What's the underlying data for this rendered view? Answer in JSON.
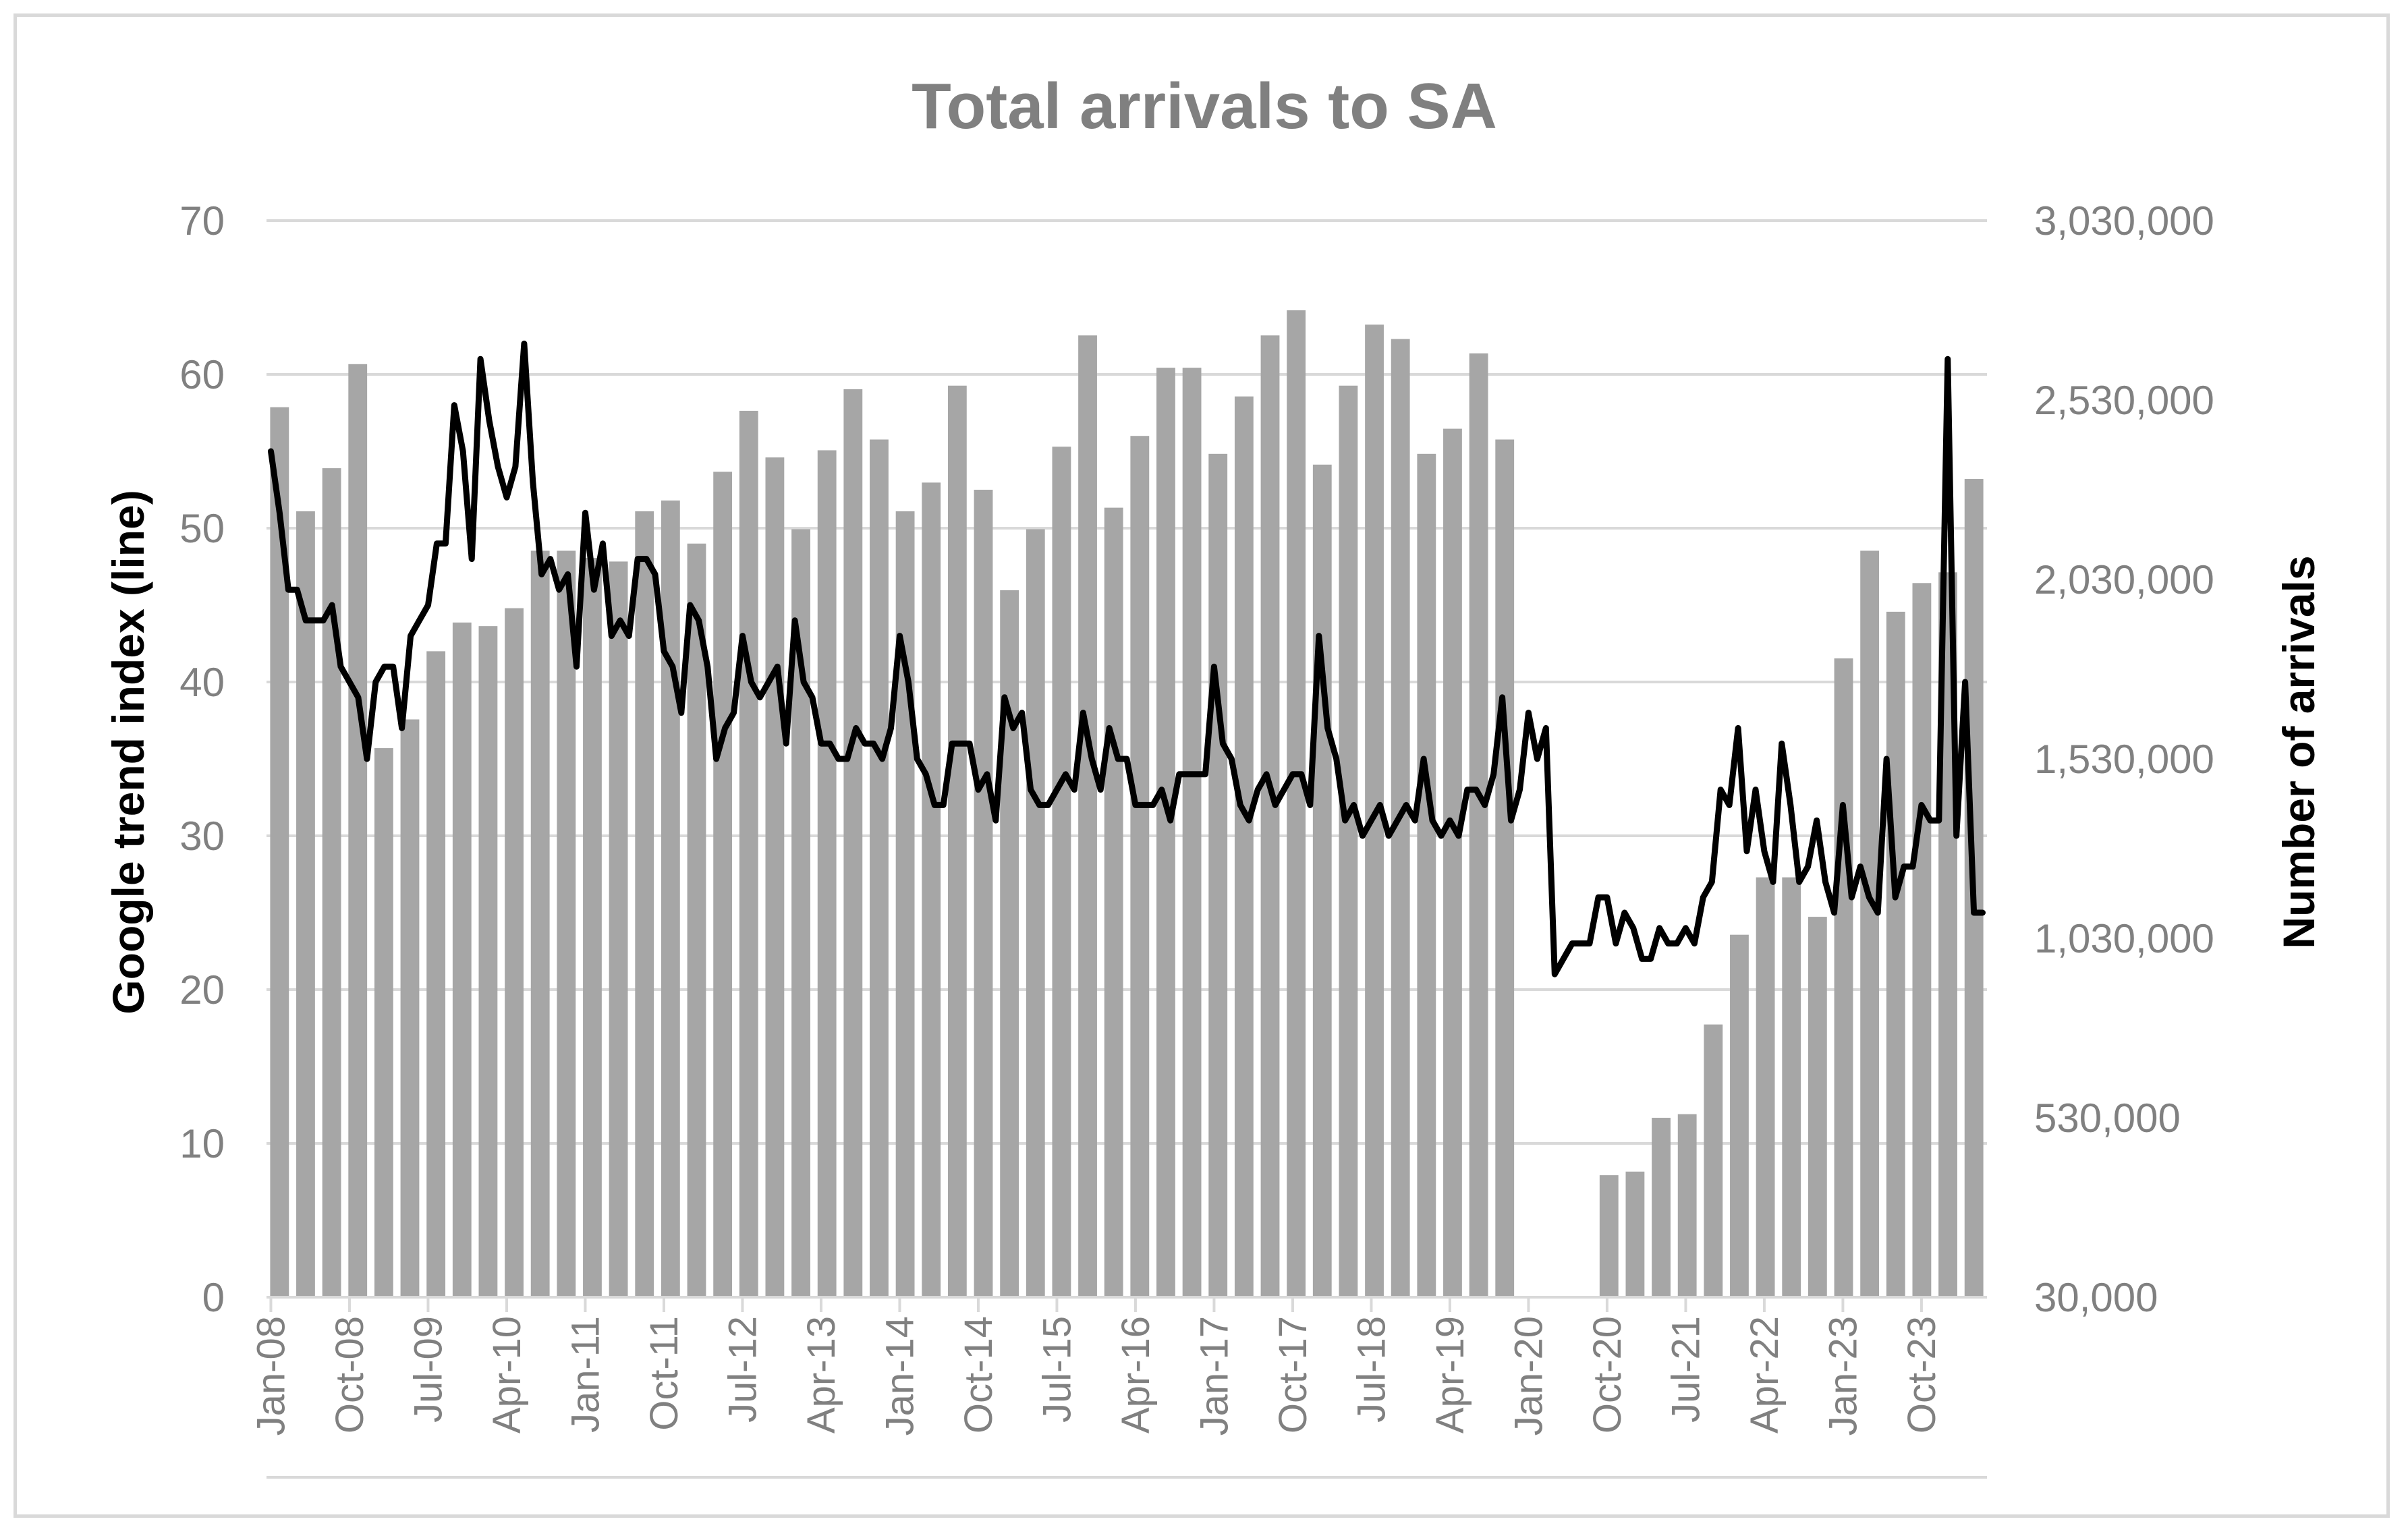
{
  "colors": {
    "bars": "#a6a6a6",
    "line": "#000000",
    "gridlines": "#d9d9d9",
    "ticks": "#808080",
    "title": "#808080",
    "axis_titles": "#000000"
  },
  "chart_data": {
    "type": "bar+line",
    "title": "Total arrivals to SA",
    "y_left_label": "Google trend index (line)",
    "y_right_label": "Number of arrivals",
    "y_left_range": [
      0,
      70
    ],
    "y_left_ticks": [
      "0",
      "10",
      "20",
      "30",
      "40",
      "50",
      "60",
      "70"
    ],
    "y_right_range": [
      30000,
      3030000
    ],
    "y_right_ticks": [
      "30,000",
      "530,000",
      "1,030,000",
      "1,530,000",
      "2,030,000",
      "2,530,000",
      "3,030,000"
    ],
    "x_tick_labels": [
      "Jan-08",
      "Oct-08",
      "Jul-09",
      "Apr-10",
      "Jan-11",
      "Oct-11",
      "Jul-12",
      "Apr-13",
      "Jan-14",
      "Oct-14",
      "Jul-15",
      "Apr-16",
      "Jan-17",
      "Oct-17",
      "Jul-18",
      "Apr-19",
      "Jan-20",
      "Oct-20",
      "Jul-21",
      "Apr-22",
      "Jan-23",
      "Oct-23"
    ],
    "grid": "horizontal",
    "series": [
      {
        "name": "Number of arrivals",
        "kind": "bar",
        "axis": "right",
        "frequency": "quarterly",
        "x": [
          "2008-Q1",
          "2008-Q2",
          "2008-Q3",
          "2008-Q4",
          "2009-Q1",
          "2009-Q2",
          "2009-Q3",
          "2009-Q4",
          "2010-Q1",
          "2010-Q2",
          "2010-Q3",
          "2010-Q4",
          "2011-Q1",
          "2011-Q2",
          "2011-Q3",
          "2011-Q4",
          "2012-Q1",
          "2012-Q2",
          "2012-Q3",
          "2012-Q4",
          "2013-Q1",
          "2013-Q2",
          "2013-Q3",
          "2013-Q4",
          "2014-Q1",
          "2014-Q2",
          "2014-Q3",
          "2014-Q4",
          "2015-Q1",
          "2015-Q2",
          "2015-Q3",
          "2015-Q4",
          "2016-Q1",
          "2016-Q2",
          "2016-Q3",
          "2016-Q4",
          "2017-Q1",
          "2017-Q2",
          "2017-Q3",
          "2017-Q4",
          "2018-Q1",
          "2018-Q2",
          "2018-Q3",
          "2018-Q4",
          "2019-Q1",
          "2019-Q2",
          "2019-Q3",
          "2019-Q4",
          "2020-Q1",
          "2020-Q2",
          "2020-Q3",
          "2020-Q4",
          "2021-Q1",
          "2021-Q2",
          "2021-Q3",
          "2021-Q4",
          "2022-Q1",
          "2022-Q2",
          "2022-Q3",
          "2022-Q4",
          "2023-Q1",
          "2023-Q2",
          "2023-Q3",
          "2023-Q4",
          "2024-Q1",
          "2024-Q2"
        ],
        "values": [
          2510000,
          2220000,
          2340000,
          2630000,
          1560000,
          1640000,
          1830000,
          1910000,
          1900000,
          1950000,
          2110000,
          2110000,
          2090000,
          2080000,
          2220000,
          2250000,
          2130000,
          2330000,
          2500000,
          2370000,
          2170000,
          2390000,
          2560000,
          2420000,
          2220000,
          2300000,
          2570000,
          2280000,
          2000000,
          2170000,
          2400000,
          2710000,
          2230000,
          2430000,
          2620000,
          2620000,
          2380000,
          2540000,
          2710000,
          2780000,
          2350000,
          2570000,
          2740000,
          2700000,
          2380000,
          2450000,
          2660000,
          2420000,
          30000,
          30000,
          30000,
          370000,
          380000,
          530000,
          540000,
          790000,
          1040000,
          1200000,
          1200000,
          1090000,
          1810000,
          2110000,
          1940000,
          2020000,
          2050000,
          2310000
        ]
      },
      {
        "name": "Google trend index",
        "kind": "line",
        "axis": "left",
        "frequency": "monthly",
        "x_start": "Jan-08",
        "values": [
          55,
          51,
          46,
          46,
          44,
          44,
          44,
          45,
          41,
          40,
          39,
          35,
          40,
          41,
          41,
          37,
          43,
          44,
          45,
          49,
          49,
          58,
          55,
          48,
          61,
          57,
          54,
          52,
          54,
          62,
          53,
          47,
          48,
          46,
          47,
          41,
          51,
          46,
          49,
          43,
          44,
          43,
          48,
          48,
          47,
          42,
          41,
          38,
          45,
          44,
          41,
          35,
          37,
          38,
          43,
          40,
          39,
          40,
          41,
          36,
          44,
          40,
          39,
          36,
          36,
          35,
          35,
          37,
          36,
          36,
          35,
          37,
          43,
          40,
          35,
          34,
          32,
          32,
          36,
          36,
          36,
          33,
          34,
          31,
          39,
          37,
          38,
          33,
          32,
          32,
          33,
          34,
          33,
          38,
          35,
          33,
          37,
          35,
          35,
          32,
          32,
          32,
          33,
          31,
          34,
          34,
          34,
          34,
          41,
          36,
          35,
          32,
          31,
          33,
          34,
          32,
          33,
          34,
          34,
          32,
          43,
          37,
          35,
          31,
          32,
          30,
          31,
          32,
          30,
          31,
          32,
          31,
          35,
          31,
          30,
          31,
          30,
          33,
          33,
          32,
          34,
          39,
          31,
          33,
          38,
          35,
          37,
          21,
          22,
          23,
          23,
          23,
          26,
          26,
          23,
          25,
          24,
          22,
          22,
          24,
          23,
          23,
          24,
          23,
          26,
          27,
          33,
          32,
          37,
          29,
          33,
          29,
          27,
          36,
          32,
          27,
          28,
          31,
          27,
          25,
          32,
          26,
          28,
          26,
          25,
          35,
          26,
          28,
          28,
          32,
          31,
          31,
          61,
          30,
          40,
          25,
          25
        ]
      }
    ]
  }
}
